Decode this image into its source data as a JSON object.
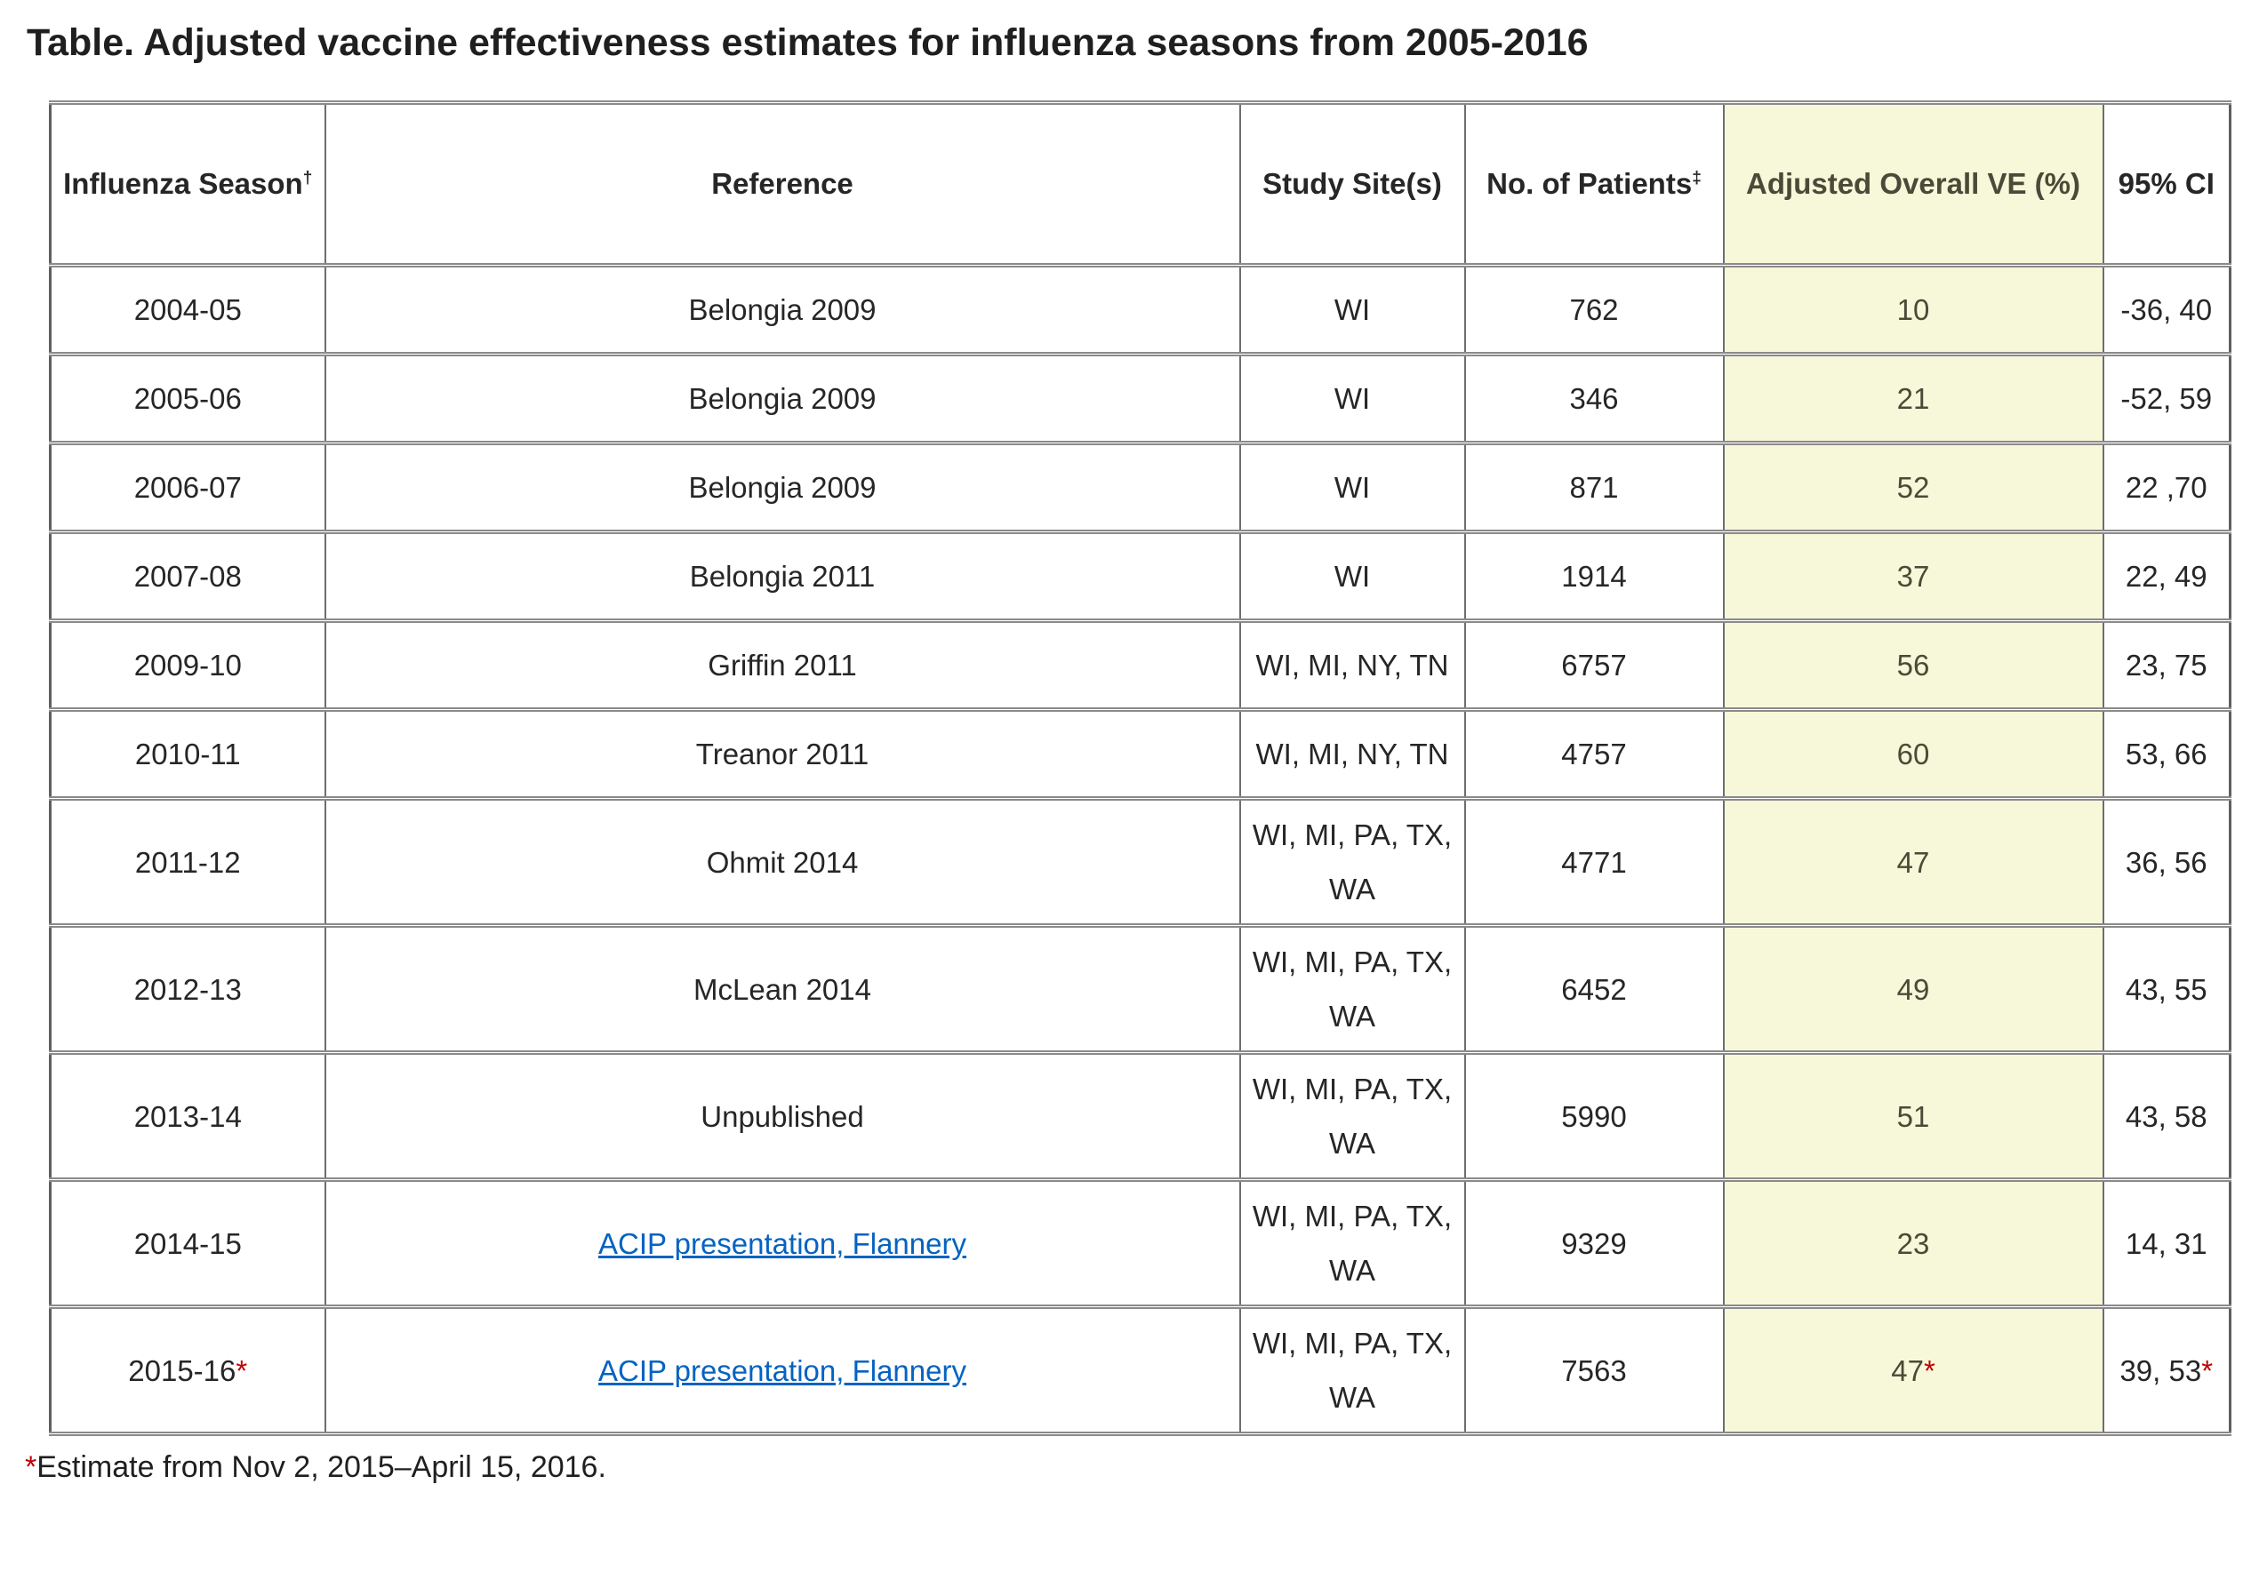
{
  "title": "Table. Adjusted vaccine effectiveness estimates for influenza seasons from 2005-2016",
  "table": {
    "columns": [
      {
        "label": "Influenza Season",
        "sup": "†"
      },
      {
        "label": "Reference",
        "sup": ""
      },
      {
        "label": "Study Site(s)",
        "sup": ""
      },
      {
        "label": "No. of Patients",
        "sup": "‡"
      },
      {
        "label": "Adjusted Overall VE (%)",
        "sup": "",
        "highlight": true
      },
      {
        "label": "95% CI",
        "sup": ""
      }
    ],
    "rows": [
      {
        "season": "2004-05",
        "season_mark": "",
        "reference": "Belongia 2009",
        "link": false,
        "sites": "WI",
        "patients": "762",
        "ve": "10",
        "ve_mark": "",
        "ci": "-36, 40",
        "ci_mark": ""
      },
      {
        "season": "2005-06",
        "season_mark": "",
        "reference": "Belongia 2009",
        "link": false,
        "sites": "WI",
        "patients": "346",
        "ve": "21",
        "ve_mark": "",
        "ci": "-52, 59",
        "ci_mark": ""
      },
      {
        "season": "2006-07",
        "season_mark": "",
        "reference": "Belongia 2009",
        "link": false,
        "sites": "WI",
        "patients": "871",
        "ve": "52",
        "ve_mark": "",
        "ci": "22 ,70",
        "ci_mark": ""
      },
      {
        "season": "2007-08",
        "season_mark": "",
        "reference": "Belongia 2011",
        "link": false,
        "sites": "WI",
        "patients": "1914",
        "ve": "37",
        "ve_mark": "",
        "ci": "22, 49",
        "ci_mark": ""
      },
      {
        "season": "2009-10",
        "season_mark": "",
        "reference": "Griffin 2011",
        "link": false,
        "sites": "WI, MI, NY, TN",
        "patients": "6757",
        "ve": "56",
        "ve_mark": "",
        "ci": "23, 75",
        "ci_mark": ""
      },
      {
        "season": "2010-11",
        "season_mark": "",
        "reference": "Treanor 2011",
        "link": false,
        "sites": "WI, MI, NY, TN",
        "patients": "4757",
        "ve": "60",
        "ve_mark": "",
        "ci": "53, 66",
        "ci_mark": ""
      },
      {
        "season": "2011-12",
        "season_mark": "",
        "reference": "Ohmit 2014",
        "link": false,
        "sites": "WI, MI, PA, TX, WA",
        "patients": "4771",
        "ve": "47",
        "ve_mark": "",
        "ci": "36, 56",
        "ci_mark": ""
      },
      {
        "season": "2012-13",
        "season_mark": "",
        "reference": "McLean 2014",
        "link": false,
        "sites": "WI, MI, PA, TX, WA",
        "patients": "6452",
        "ve": "49",
        "ve_mark": "",
        "ci": "43, 55",
        "ci_mark": ""
      },
      {
        "season": "2013-14",
        "season_mark": "",
        "reference": "Unpublished",
        "link": false,
        "sites": "WI, MI, PA, TX, WA",
        "patients": "5990",
        "ve": "51",
        "ve_mark": "",
        "ci": "43, 58",
        "ci_mark": ""
      },
      {
        "season": "2014-15",
        "season_mark": "",
        "reference": "ACIP presentation, Flannery",
        "link": true,
        "sites": "WI, MI, PA, TX, WA",
        "patients": "9329",
        "ve": "23",
        "ve_mark": "",
        "ci": "14, 31",
        "ci_mark": ""
      },
      {
        "season": "2015-16",
        "season_mark": "*",
        "reference": "ACIP presentation, Flannery",
        "link": true,
        "sites": "WI, MI, PA, TX, WA",
        "patients": "7563",
        "ve": "47",
        "ve_mark": "*",
        "ci": "39, 53",
        "ci_mark": "*"
      }
    ]
  },
  "footnote": {
    "mark": "*",
    "text": "Estimate from Nov 2, 2015–April 15, 2016."
  },
  "colors": {
    "highlight": "#F7F7D9",
    "link": "#0563C1",
    "asterisk": "#C00000",
    "vertical_border": "#6e6e6e",
    "horizontal_border": "#8a8a8a",
    "text": "#262626",
    "ve_text": "#4b4a38"
  }
}
